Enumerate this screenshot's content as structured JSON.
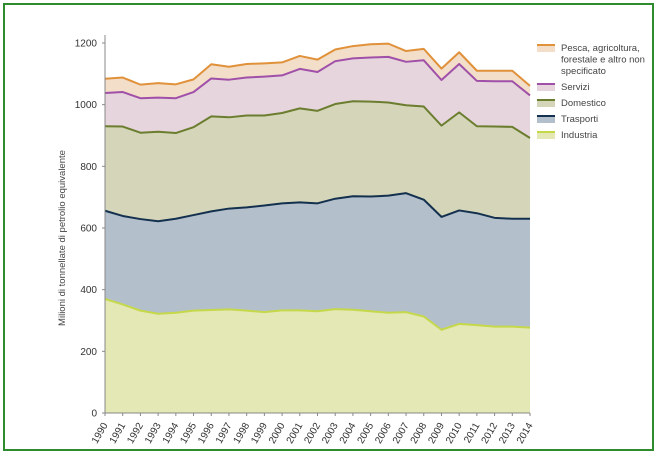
{
  "chart_data": {
    "type": "area",
    "stacked": true,
    "ylabel": "Milioni di tonnellate di petrolio equivalente",
    "xlabel": "",
    "ylim": [
      0,
      1200
    ],
    "yticks": [
      0,
      200,
      400,
      600,
      800,
      1000,
      1200
    ],
    "grid": false,
    "legend_position": "top-right",
    "x": [
      "1990",
      "1991",
      "1992",
      "1993",
      "1994",
      "1995",
      "1996",
      "1997",
      "1998",
      "1999",
      "2000",
      "2001",
      "2002",
      "2003",
      "2004",
      "2005",
      "2006",
      "2007",
      "2008",
      "2009",
      "2010",
      "2011",
      "2012",
      "2013",
      "2014"
    ],
    "series": [
      {
        "name": "Industria",
        "fill": "#e3e8b4",
        "line": "#c5d84a",
        "values": [
          370,
          352,
          332,
          322,
          325,
          332,
          334,
          336,
          332,
          327,
          333,
          333,
          330,
          337,
          335,
          330,
          325,
          327,
          313,
          270,
          289,
          285,
          280,
          280,
          277
        ]
      },
      {
        "name": "Trasporti",
        "fill": "#b3c0cb",
        "line": "#14304f",
        "values": [
          286,
          287,
          297,
          300,
          305,
          310,
          320,
          327,
          335,
          346,
          347,
          350,
          350,
          358,
          368,
          372,
          380,
          386,
          379,
          366,
          368,
          363,
          353,
          350,
          353
        ]
      },
      {
        "name": "Domestico",
        "fill": "#d5d6b9",
        "line": "#6b7d2e",
        "values": [
          274,
          290,
          280,
          290,
          278,
          285,
          308,
          296,
          298,
          292,
          293,
          305,
          300,
          307,
          308,
          308,
          302,
          285,
          302,
          296,
          318,
          282,
          296,
          298,
          262
        ]
      },
      {
        "name": "Servizi",
        "fill": "#e6d5dd",
        "line": "#a050a8",
        "values": [
          108,
          112,
          112,
          111,
          113,
          114,
          123,
          122,
          123,
          126,
          122,
          128,
          126,
          139,
          139,
          143,
          148,
          141,
          150,
          148,
          157,
          147,
          147,
          148,
          138
        ]
      },
      {
        "name": "Pesca, agricoltura, forestale e altro non specificato",
        "fill": "#f2dec9",
        "line": "#e0913a",
        "values": [
          46,
          47,
          44,
          47,
          45,
          41,
          46,
          42,
          44,
          43,
          42,
          42,
          40,
          38,
          40,
          43,
          43,
          35,
          37,
          37,
          38,
          33,
          34,
          34,
          31
        ]
      }
    ]
  }
}
